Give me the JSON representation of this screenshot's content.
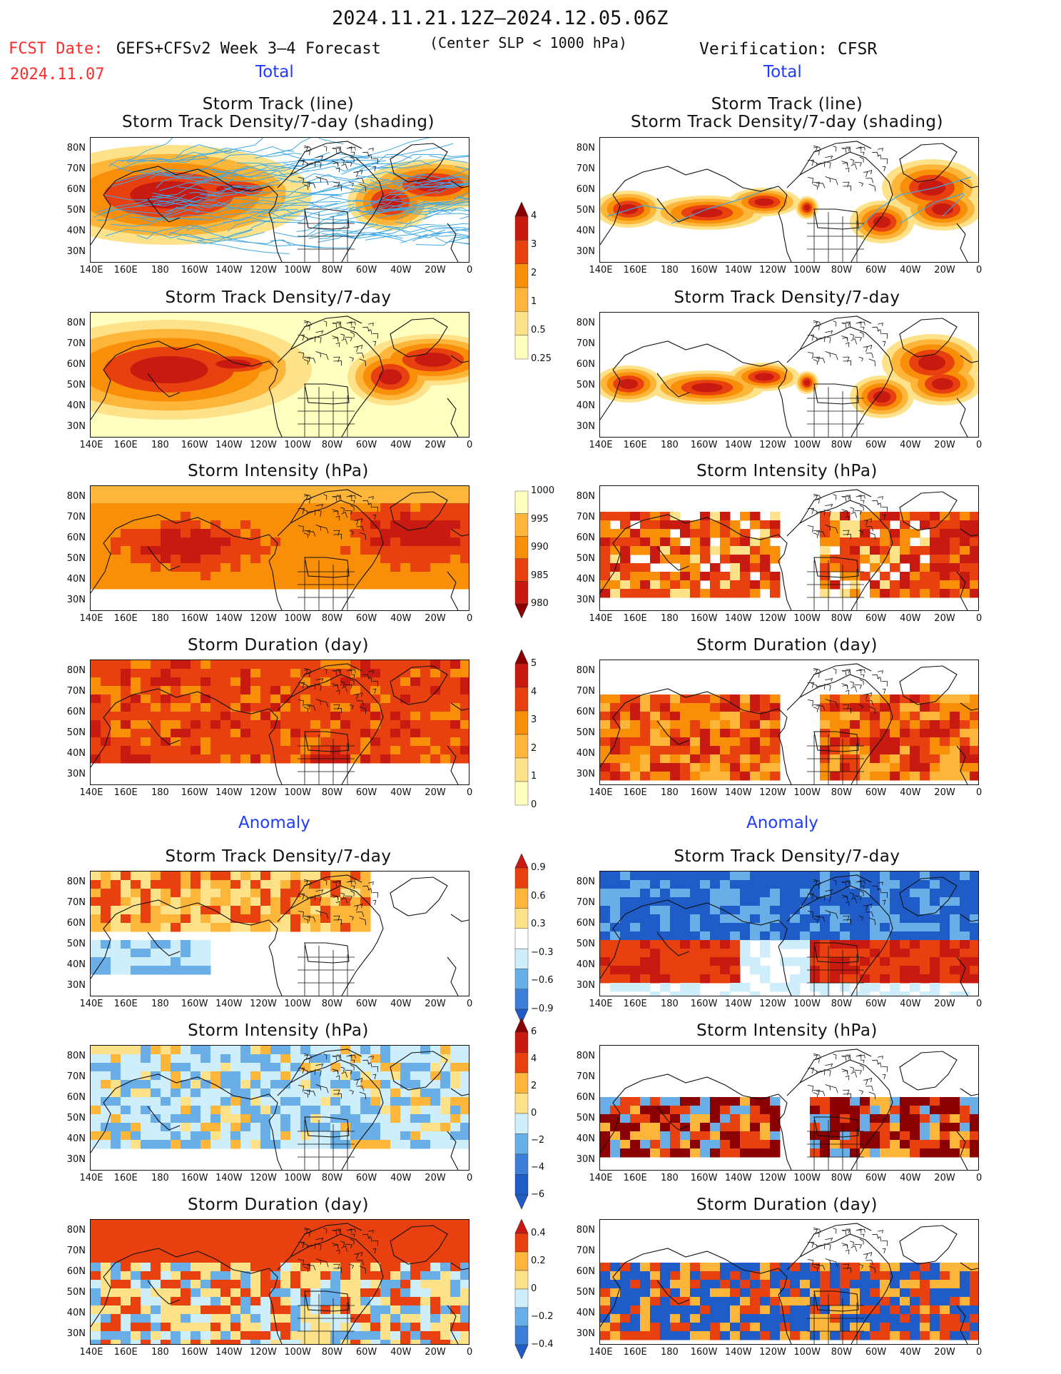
{
  "header": {
    "period": "2024.11.21.12Z–2024.12.05.06Z",
    "fcst_label": "FCST Date:",
    "fcst_date": "2024.11.07",
    "model": "GEFS+CFSv2 Week 3–4 Forecast",
    "condition": "(Center SLP < 1000 hPa)",
    "verification": "Verification: CFSR"
  },
  "sections": {
    "total_left": "Total",
    "total_right": "Total",
    "anomaly_left": "Anomaly",
    "anomaly_right": "Anomaly"
  },
  "panel_titles": {
    "track_line": "Storm Track (line)",
    "track_shading": "Storm Track Density/7-day (shading)",
    "density": "Storm Track Density/7-day",
    "intensity": "Storm Intensity (hPa)",
    "duration": "Storm Duration (day)"
  },
  "axes": {
    "lat_ticks": [
      "80N",
      "70N",
      "60N",
      "50N",
      "40N",
      "30N"
    ],
    "lon_ticks": [
      "140E",
      "160E",
      "180",
      "160W",
      "140W",
      "120W",
      "100W",
      "80W",
      "60W",
      "40W",
      "20W",
      "0"
    ]
  },
  "colorbars": {
    "density": [
      "4",
      "3",
      "2",
      "1",
      "0.5",
      "0.25"
    ],
    "intensity": [
      "1000",
      "995",
      "990",
      "985",
      "980"
    ],
    "duration": [
      "5",
      "4",
      "3",
      "2",
      "1",
      "0"
    ],
    "density_anom": [
      "0.9",
      "0.6",
      "0.3",
      "−0.3",
      "−0.6",
      "−0.9"
    ],
    "intensity_anom": [
      "6",
      "4",
      "2",
      "0",
      "−2",
      "−4",
      "−6"
    ],
    "duration_anom": [
      "0.4",
      "0.2",
      "0",
      "−0.2",
      "−0.4"
    ]
  },
  "colors": {
    "warm": [
      "#ffffbf",
      "#fde28a",
      "#fdb53a",
      "#f98e09",
      "#e8400f",
      "#c81a10",
      "#8b0000"
    ],
    "cool": [
      "#cdeefa",
      "#a8def5",
      "#6aaee8",
      "#3d7fd8",
      "#1f5cc8"
    ],
    "track_line": "#3fa9e6",
    "header_red": "#ff2a2a",
    "header_blue": "#1f3cff"
  }
}
